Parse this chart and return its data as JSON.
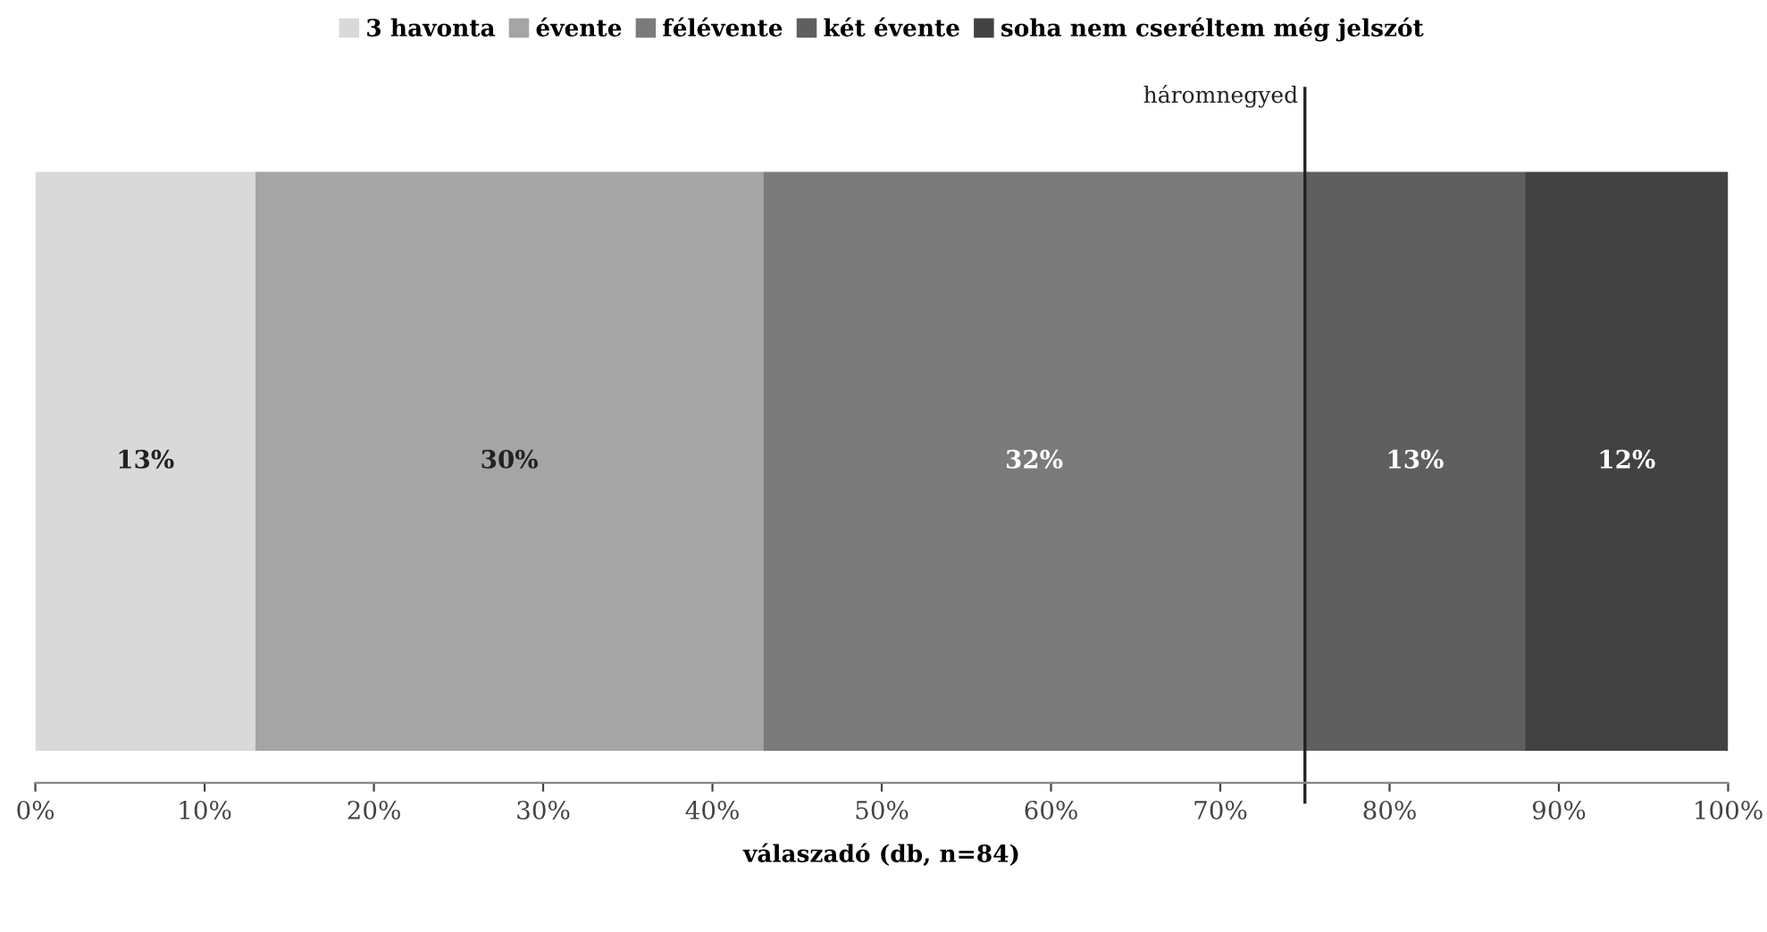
{
  "chart_data": {
    "type": "bar",
    "orientation": "horizontal",
    "stacked": true,
    "xlabel": "válaszadó (db, n=84)",
    "categories": [
      null
    ],
    "series": [
      {
        "name": "3 havonta",
        "color": "#d9d9d9",
        "values": [
          13
        ],
        "value_labels": [
          "13%"
        ]
      },
      {
        "name": "évente",
        "color": "#a5a5a5",
        "values": [
          30
        ],
        "value_labels": [
          "30%"
        ]
      },
      {
        "name": "félévente",
        "color": "#7b7b7b",
        "values": [
          32
        ],
        "value_labels": [
          "32%"
        ]
      },
      {
        "name": "két évente",
        "color": "#5f5f5f",
        "values": [
          13
        ],
        "value_labels": [
          "13%"
        ]
      },
      {
        "name": "soha nem cseréltem még jelszót",
        "color": "#424242",
        "values": [
          12
        ],
        "value_labels": [
          "12%"
        ]
      }
    ],
    "xlim": [
      0,
      100
    ],
    "xticks": [
      {
        "value": 0,
        "label": "0%"
      },
      {
        "value": 10,
        "label": "10%"
      },
      {
        "value": 20,
        "label": "20%"
      },
      {
        "value": 30,
        "label": "30%"
      },
      {
        "value": 40,
        "label": "40%"
      },
      {
        "value": 50,
        "label": "50%"
      },
      {
        "value": 60,
        "label": "60%"
      },
      {
        "value": 70,
        "label": "70%"
      },
      {
        "value": 80,
        "label": "80%"
      },
      {
        "value": 90,
        "label": "90%"
      },
      {
        "value": 100,
        "label": "100%"
      }
    ],
    "ref_lines": [
      {
        "axis": "x",
        "value": 75,
        "label": "háromnegyed",
        "color": "#222222"
      }
    ],
    "legend": "top",
    "grid": false,
    "tick_labels": "x"
  }
}
